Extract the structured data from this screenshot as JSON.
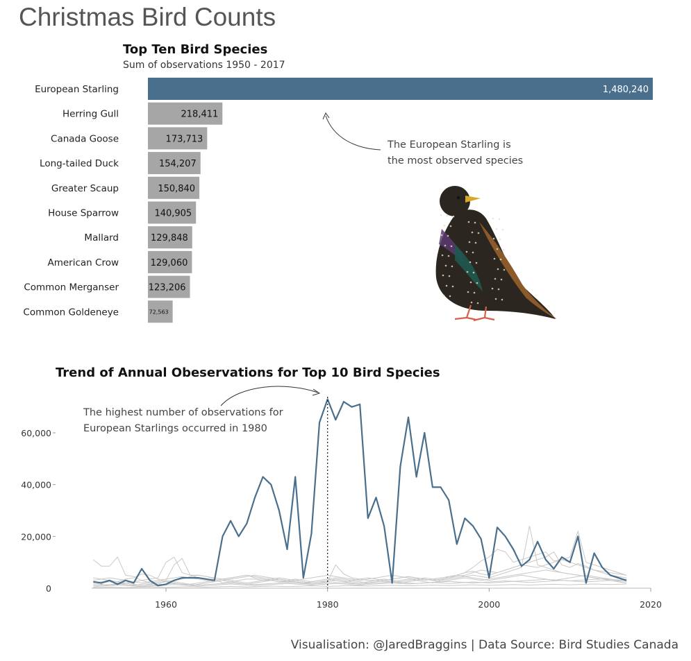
{
  "page_title": "Christmas Bird Counts",
  "footer": "Visualisation: @JaredBraggins  |  Data Source: Bird Studies Canada",
  "colors": {
    "highlight": "#4a6f8c",
    "bar_gray": "#a6a6a6",
    "line_gray": "#c8c8c8"
  },
  "chart_data": [
    {
      "type": "bar",
      "title": "Top Ten Bird Species",
      "subtitle": "Sum of observations 1950 - 2017",
      "categories": [
        "European Starling",
        "Herring Gull",
        "Canada Goose",
        "Long-tailed Duck",
        "Greater Scaup",
        "House Sparrow",
        "Mallard",
        "American Crow",
        "Common Merganser",
        "Common Goldeneye"
      ],
      "values": [
        1480240,
        218411,
        173713,
        154207,
        150840,
        140905,
        129848,
        129060,
        123206,
        72563
      ],
      "value_labels": [
        "1,480,240",
        "218,411",
        "173,713",
        "154,207",
        "150,840",
        "140,905",
        "129,848",
        "129,060",
        "123,206",
        "72,563"
      ],
      "highlight": "European Starling",
      "annotation": [
        "The European Starling is",
        "the most observed species"
      ]
    },
    {
      "type": "line",
      "title": "Trend of Annual Obeservations for Top 10 Bird Species",
      "xlim": [
        1950,
        2020
      ],
      "ylim": [
        0,
        75000
      ],
      "xticks": [
        1960,
        1980,
        2000,
        2020
      ],
      "yticks": [
        0,
        20000,
        40000,
        60000
      ],
      "ytick_labels": [
        "0",
        "20,000",
        "40,000",
        "60,000"
      ],
      "marker_year": 1980,
      "annotation": [
        "The highest number of observations for",
        "European Starlings occurred in 1980"
      ],
      "highlight_series": {
        "name": "European Starling",
        "x": [
          1951,
          1952,
          1953,
          1954,
          1955,
          1956,
          1957,
          1958,
          1959,
          1960,
          1961,
          1962,
          1963,
          1964,
          1965,
          1966,
          1967,
          1968,
          1969,
          1970,
          1971,
          1972,
          1973,
          1974,
          1975,
          1976,
          1977,
          1978,
          1979,
          1980,
          1981,
          1982,
          1983,
          1984,
          1985,
          1986,
          1987,
          1988,
          1989,
          1990,
          1991,
          1992,
          1993,
          1994,
          1995,
          1996,
          1997,
          1998,
          1999,
          2000,
          2001,
          2002,
          2003,
          2004,
          2005,
          2006,
          2007,
          2008,
          2009,
          2010,
          2011,
          2012,
          2013,
          2014,
          2015,
          2016,
          2017
        ],
        "y": [
          2500,
          2000,
          3000,
          1500,
          3000,
          2000,
          7500,
          3000,
          1000,
          1500,
          3000,
          4000,
          4000,
          4000,
          3500,
          3000,
          20000,
          26000,
          20000,
          25000,
          35000,
          43000,
          40000,
          30000,
          15000,
          43000,
          4000,
          21000,
          64000,
          73000,
          65000,
          72000,
          70000,
          71000,
          27000,
          35000,
          24000,
          2000,
          47000,
          66000,
          43000,
          60000,
          39000,
          39000,
          34000,
          17000,
          27000,
          24000,
          19000,
          4000,
          23500,
          20000,
          15000,
          8500,
          11000,
          18000,
          11000,
          7500,
          12000,
          10000,
          20000,
          2000,
          13500,
          8000,
          5000,
          4000,
          3000
        ]
      },
      "other_series": [
        {
          "y": [
            11000,
            8500,
            8500,
            12000,
            5000,
            4500,
            3000,
            2000,
            1500,
            3000,
            9000,
            11500,
            5000,
            5000,
            4500,
            3500,
            2000,
            2500,
            3000,
            3500,
            3500,
            3000,
            3000,
            2500,
            2500,
            2500,
            2000,
            2000,
            2500,
            2500,
            9000,
            5500,
            4000,
            3500,
            3000,
            3000,
            2500,
            2500,
            3000,
            3500,
            3000,
            2500,
            2000,
            3000,
            4500,
            5000,
            6000,
            8000,
            10500,
            12000,
            15000,
            14000,
            10000,
            11000,
            12000,
            13000,
            14000,
            10500,
            11000,
            10000,
            9000,
            8000,
            7000,
            6000,
            5000,
            4500,
            4000
          ]
        },
        {
          "y": [
            2000,
            2500,
            3000,
            2500,
            3500,
            4000,
            5500,
            5000,
            3500,
            2500,
            3000,
            3500,
            4500,
            5000,
            4500,
            4000,
            3500,
            4000,
            4500,
            5000,
            4000,
            3500,
            3000,
            2500,
            3000,
            3500,
            3000,
            2500,
            3000,
            3500,
            3000,
            2500,
            3000,
            3500,
            4000,
            3500,
            3000,
            3500,
            4000,
            4500,
            4000,
            3500,
            3000,
            3500,
            4000,
            5000,
            6000,
            6500,
            5500,
            5000,
            6000,
            7000,
            8000,
            9000,
            10000,
            11000,
            12000,
            14000,
            9000,
            8000,
            9500,
            8500,
            7000,
            6500,
            6000,
            5500,
            5000
          ]
        },
        {
          "y": [
            3000,
            3500,
            4000,
            3500,
            3000,
            2500,
            2000,
            2500,
            3000,
            3500,
            4000,
            4500,
            4000,
            3500,
            3000,
            2500,
            3000,
            3500,
            4000,
            4500,
            5000,
            4500,
            4000,
            3500,
            3000,
            2500,
            2000,
            2500,
            3000,
            3500,
            4000,
            3500,
            3000,
            2500,
            2000,
            2500,
            3000,
            3500,
            4000,
            4500,
            4000,
            3500,
            3000,
            3500,
            4000,
            4500,
            5000,
            6000,
            7000,
            6500,
            6000,
            7000,
            8000,
            9000,
            8500,
            8000,
            9000,
            10000,
            11000,
            12000,
            22000,
            10000,
            9000,
            8000,
            7000,
            6000,
            5000
          ]
        },
        {
          "y": [
            1500,
            2000,
            2500,
            2000,
            1500,
            1000,
            1500,
            2000,
            2500,
            3000,
            2500,
            2000,
            1500,
            2000,
            2500,
            3000,
            3500,
            3000,
            2500,
            2000,
            2500,
            3000,
            3500,
            4000,
            3500,
            3000,
            2500,
            2000,
            2500,
            3000,
            3500,
            3000,
            2500,
            2000,
            2500,
            3000,
            3500,
            3000,
            2500,
            3000,
            3500,
            4000,
            3500,
            3000,
            3500,
            4000,
            4500,
            5000,
            4500,
            4000,
            5000,
            6000,
            7000,
            8000,
            24000,
            9000,
            8000,
            7000,
            6000,
            5500,
            5000,
            4500,
            4000,
            3500,
            3000,
            2500,
            2000
          ]
        },
        {
          "y": [
            1000,
            1500,
            1000,
            1500,
            2000,
            1500,
            1000,
            1500,
            2000,
            2500,
            2000,
            1500,
            1000,
            1500,
            2000,
            2500,
            3000,
            2500,
            2000,
            1500,
            2000,
            2500,
            3000,
            3500,
            3000,
            2500,
            2000,
            1500,
            2000,
            2500,
            3000,
            2500,
            2000,
            1500,
            2000,
            2500,
            3000,
            2500,
            2000,
            2500,
            3000,
            3500,
            3000,
            2500,
            3000,
            3500,
            4000,
            3500,
            3000,
            3500,
            4000,
            4500,
            5000,
            5500,
            6000,
            6500,
            7000,
            6500,
            6000,
            5500,
            5000,
            4500,
            4000,
            3500,
            3000,
            2500,
            2000
          ]
        },
        {
          "y": [
            500,
            800,
            1000,
            1200,
            1000,
            800,
            600,
            800,
            1000,
            1200,
            1400,
            1200,
            1000,
            800,
            1000,
            1200,
            1400,
            1600,
            1400,
            1200,
            1000,
            1200,
            1400,
            1600,
            1800,
            1600,
            1400,
            1200,
            1400,
            1600,
            1800,
            1600,
            1400,
            1200,
            1400,
            1600,
            1800,
            2000,
            1800,
            1600,
            1800,
            2000,
            2200,
            2000,
            1800,
            2000,
            2200,
            2400,
            2200,
            2000,
            2200,
            2400,
            2600,
            2800,
            3000,
            3200,
            3400,
            3200,
            3000,
            2800,
            3000,
            3200,
            3400,
            3600,
            3400,
            3200,
            3000
          ]
        },
        {
          "y": [
            200,
            300,
            400,
            300,
            200,
            300,
            400,
            500,
            400,
            300,
            400,
            500,
            600,
            500,
            400,
            500,
            600,
            700,
            600,
            500,
            600,
            700,
            800,
            700,
            600,
            700,
            800,
            900,
            800,
            700,
            800,
            900,
            1000,
            900,
            800,
            900,
            1000,
            1100,
            1000,
            900,
            1000,
            1100,
            1200,
            1100,
            1000,
            1100,
            1200,
            1300,
            1200,
            1100,
            1200,
            1300,
            1400,
            1300,
            1200,
            1300,
            1400,
            1500,
            1400,
            1300,
            1400,
            1500,
            1600,
            1500,
            1400,
            1500,
            1600
          ]
        },
        {
          "y": [
            4000,
            3500,
            3000,
            2500,
            2000,
            2500,
            3000,
            3500,
            4000,
            10000,
            12000,
            6000,
            5000,
            4000,
            3500,
            3000,
            3500,
            4000,
            4500,
            5000,
            4500,
            4000,
            3500,
            3000,
            2500,
            3000,
            3500,
            4000,
            4500,
            5000,
            4500,
            4000,
            3500,
            3000,
            3500,
            4000,
            4500,
            5000,
            4500,
            4000,
            3500,
            3000,
            3500,
            4000,
            4500,
            5000,
            4500,
            4000,
            3500,
            3000,
            3500,
            4000,
            4500,
            5000,
            4500,
            4000,
            3500,
            3000,
            3500,
            4000,
            4500,
            5000,
            4500,
            4000,
            3500,
            3000,
            3500
          ]
        },
        {
          "y": [
            1000,
            1200,
            1400,
            1600,
            1400,
            1200,
            1000,
            1200,
            1400,
            1600,
            1800,
            1600,
            1400,
            1200,
            1400,
            1600,
            1800,
            2000,
            1800,
            1600,
            1400,
            1600,
            1800,
            2000,
            2200,
            2000,
            1800,
            1600,
            1800,
            2000,
            2200,
            2000,
            1800,
            1600,
            1800,
            2000,
            2200,
            2400,
            2200,
            2000,
            1800,
            2000,
            2200,
            2400,
            2600,
            2400,
            2200,
            2000,
            2200,
            2400,
            2600,
            2800,
            2600,
            2400,
            2200,
            2400,
            2600,
            2800,
            3000,
            2800,
            2600,
            2400,
            2600,
            2800,
            3000,
            2800,
            2600
          ]
        }
      ]
    }
  ]
}
